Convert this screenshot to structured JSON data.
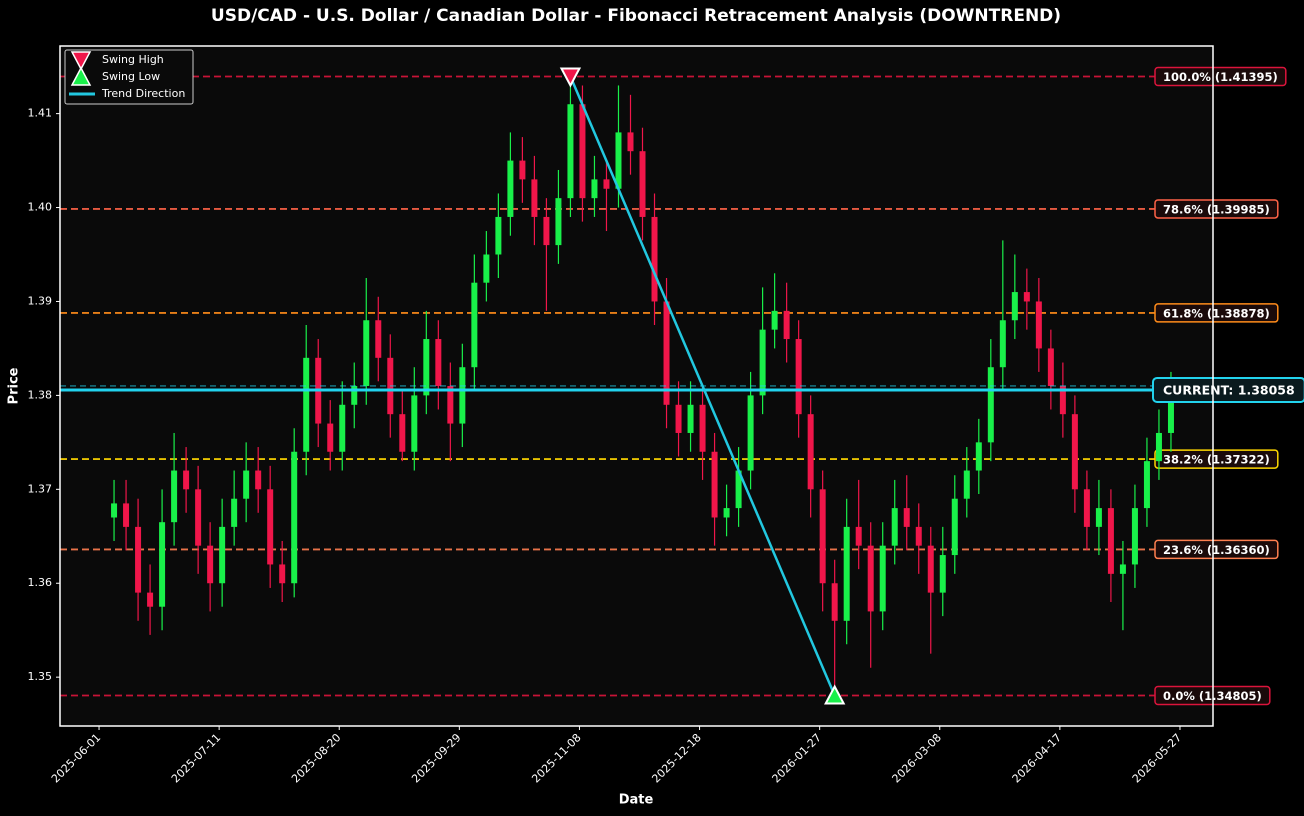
{
  "chart_data": {
    "type": "candlestick",
    "title": "USD/CAD - U.S. Dollar / Canadian Dollar - Fibonacci Retracement Analysis (DOWNTREND)",
    "xlabel": "Date",
    "ylabel": "Price",
    "xlim": [
      "2025-05-19",
      "2026-06-07"
    ],
    "xticks": [
      "2025-06-01",
      "2025-07-11",
      "2025-08-20",
      "2025-09-29",
      "2025-11-08",
      "2025-12-18",
      "2026-01-27",
      "2026-03-08",
      "2026-04-17",
      "2026-05-27"
    ],
    "ylim": [
      1.3448,
      1.4172
    ],
    "yticks": [
      1.35,
      1.36,
      1.37,
      1.38,
      1.39,
      {
        "value": 1.4,
        "label": "1.40"
      },
      1.41
    ],
    "up_color": "#19f04a",
    "down_color": "#f0164a",
    "x": [
      "2025-06-06",
      "2025-06-10",
      "2025-06-14",
      "2025-06-18",
      "2025-06-22",
      "2025-06-26",
      "2025-06-30",
      "2025-07-04",
      "2025-07-08",
      "2025-07-12",
      "2025-07-16",
      "2025-07-20",
      "2025-07-24",
      "2025-07-28",
      "2025-08-01",
      "2025-08-05",
      "2025-08-09",
      "2025-08-13",
      "2025-08-17",
      "2025-08-21",
      "2025-08-25",
      "2025-08-29",
      "2025-09-02",
      "2025-09-06",
      "2025-09-10",
      "2025-09-14",
      "2025-09-18",
      "2025-09-22",
      "2025-09-26",
      "2025-09-30",
      "2025-10-04",
      "2025-10-08",
      "2025-10-12",
      "2025-10-16",
      "2025-10-20",
      "2025-10-24",
      "2025-10-28",
      "2025-11-01",
      "2025-11-05",
      "2025-11-09",
      "2025-11-13",
      "2025-11-17",
      "2025-11-21",
      "2025-11-25",
      "2025-11-29",
      "2025-12-03",
      "2025-12-07",
      "2025-12-11",
      "2025-12-15",
      "2025-12-19",
      "2025-12-23",
      "2025-12-27",
      "2025-12-31",
      "2026-01-04",
      "2026-01-08",
      "2026-01-12",
      "2026-01-16",
      "2026-01-20",
      "2026-01-24",
      "2026-01-28",
      "2026-02-01",
      "2026-02-05",
      "2026-02-09",
      "2026-02-13",
      "2026-02-17",
      "2026-02-21",
      "2026-02-25",
      "2026-03-01",
      "2026-03-05",
      "2026-03-09",
      "2026-03-13",
      "2026-03-17",
      "2026-03-21",
      "2026-03-25",
      "2026-03-29",
      "2026-04-02",
      "2026-04-06",
      "2026-04-10",
      "2026-04-14",
      "2026-04-18",
      "2026-04-22",
      "2026-04-26",
      "2026-04-30",
      "2026-05-04",
      "2026-05-08",
      "2026-05-12",
      "2026-05-16",
      "2026-05-20",
      "2026-05-24"
    ],
    "open": [
      1.367,
      1.3685,
      1.366,
      1.359,
      1.3575,
      1.3665,
      1.372,
      1.37,
      1.364,
      1.36,
      1.366,
      1.369,
      1.372,
      1.37,
      1.362,
      1.36,
      1.374,
      1.384,
      1.377,
      1.374,
      1.379,
      1.381,
      1.388,
      1.384,
      1.378,
      1.374,
      1.38,
      1.386,
      1.381,
      1.377,
      1.383,
      1.392,
      1.395,
      1.399,
      1.405,
      1.403,
      1.399,
      1.396,
      1.401,
      1.411,
      1.401,
      1.403,
      1.402,
      1.408,
      1.406,
      1.399,
      1.39,
      1.379,
      1.376,
      1.379,
      1.374,
      1.367,
      1.368,
      1.372,
      1.38,
      1.387,
      1.389,
      1.386,
      1.378,
      1.37,
      1.36,
      1.356,
      1.366,
      1.364,
      1.357,
      1.364,
      1.368,
      1.366,
      1.364,
      1.359,
      1.363,
      1.369,
      1.372,
      1.375,
      1.383,
      1.388,
      1.391,
      1.39,
      1.385,
      1.381,
      1.378,
      1.37,
      1.366,
      1.368,
      1.361,
      1.362,
      1.368,
      1.373,
      1.376
    ],
    "high": [
      1.371,
      1.371,
      1.369,
      1.362,
      1.37,
      1.376,
      1.3745,
      1.3725,
      1.3665,
      1.369,
      1.372,
      1.375,
      1.3745,
      1.3725,
      1.3645,
      1.3765,
      1.3875,
      1.386,
      1.3795,
      1.3815,
      1.3835,
      1.3925,
      1.3905,
      1.3865,
      1.3805,
      1.383,
      1.389,
      1.388,
      1.3835,
      1.3855,
      1.395,
      1.3975,
      1.4015,
      1.408,
      1.4075,
      1.4055,
      1.401,
      1.404,
      1.41395,
      1.413,
      1.4055,
      1.405,
      1.413,
      1.412,
      1.4085,
      1.4015,
      1.3925,
      1.3815,
      1.3815,
      1.381,
      1.376,
      1.3705,
      1.3745,
      1.3825,
      1.3915,
      1.393,
      1.392,
      1.388,
      1.38,
      1.372,
      1.3625,
      1.369,
      1.371,
      1.3665,
      1.3665,
      1.371,
      1.3715,
      1.3685,
      1.366,
      1.366,
      1.3715,
      1.3745,
      1.3775,
      1.386,
      1.3965,
      1.395,
      1.3935,
      1.3925,
      1.387,
      1.3835,
      1.38,
      1.372,
      1.371,
      1.37,
      1.3645,
      1.3705,
      1.3755,
      1.3785,
      1.3825
    ],
    "low": [
      1.3645,
      1.3635,
      1.356,
      1.3545,
      1.355,
      1.364,
      1.3675,
      1.361,
      1.357,
      1.3575,
      1.364,
      1.3665,
      1.3675,
      1.3595,
      1.358,
      1.3585,
      1.3715,
      1.3745,
      1.372,
      1.372,
      1.3765,
      1.379,
      1.3815,
      1.3755,
      1.373,
      1.372,
      1.378,
      1.3785,
      1.373,
      1.3745,
      1.3805,
      1.39,
      1.3925,
      1.397,
      1.4005,
      1.396,
      1.389,
      1.394,
      1.399,
      1.3985,
      1.399,
      1.3975,
      1.4,
      1.4035,
      1.3965,
      1.3875,
      1.3765,
      1.3735,
      1.374,
      1.371,
      1.364,
      1.365,
      1.366,
      1.37,
      1.378,
      1.385,
      1.3835,
      1.3755,
      1.367,
      1.357,
      1.34805,
      1.3535,
      1.3615,
      1.351,
      1.355,
      1.362,
      1.3635,
      1.361,
      1.3525,
      1.3565,
      1.361,
      1.367,
      1.3695,
      1.373,
      1.3805,
      1.386,
      1.387,
      1.3825,
      1.3785,
      1.3755,
      1.3675,
      1.3635,
      1.363,
      1.358,
      1.355,
      1.3595,
      1.366,
      1.371,
      1.374
    ],
    "close": [
      1.3685,
      1.366,
      1.359,
      1.3575,
      1.3665,
      1.372,
      1.37,
      1.364,
      1.36,
      1.366,
      1.369,
      1.372,
      1.37,
      1.362,
      1.36,
      1.374,
      1.384,
      1.377,
      1.374,
      1.379,
      1.381,
      1.388,
      1.384,
      1.378,
      1.374,
      1.38,
      1.386,
      1.381,
      1.377,
      1.383,
      1.392,
      1.395,
      1.399,
      1.405,
      1.403,
      1.399,
      1.396,
      1.401,
      1.411,
      1.401,
      1.403,
      1.402,
      1.408,
      1.406,
      1.399,
      1.39,
      1.379,
      1.376,
      1.379,
      1.374,
      1.367,
      1.368,
      1.372,
      1.38,
      1.387,
      1.389,
      1.386,
      1.378,
      1.37,
      1.36,
      1.356,
      1.366,
      1.364,
      1.357,
      1.364,
      1.368,
      1.366,
      1.364,
      1.359,
      1.363,
      1.369,
      1.372,
      1.375,
      1.383,
      1.388,
      1.391,
      1.39,
      1.385,
      1.381,
      1.378,
      1.37,
      1.366,
      1.368,
      1.361,
      1.362,
      1.368,
      1.373,
      1.376,
      1.38058
    ],
    "fib_levels": [
      {
        "label": "100.0% (1.41395)",
        "value": 1.41395,
        "color": "#dc143c"
      },
      {
        "label": "78.6% (1.39985)",
        "value": 1.39985,
        "color": "#ff6347"
      },
      {
        "label": "61.8% (1.38878)",
        "value": 1.38878,
        "color": "#ff8c1a"
      },
      {
        "label": "38.2% (1.37322)",
        "value": 1.37322,
        "color": "#ffd700"
      },
      {
        "label": "23.6% (1.36360)",
        "value": 1.3636,
        "color": "#ff7f50"
      },
      {
        "label": "0.0% (1.34805)",
        "value": 1.34805,
        "color": "#dc143c"
      }
    ],
    "current": {
      "label": "CURRENT: 1.38058",
      "value": 1.38058,
      "color": "#22d3ee"
    },
    "swing_high": {
      "name": "Swing High",
      "x": "2025-11-05",
      "value": 1.41395,
      "color": "#f0164a"
    },
    "swing_low": {
      "name": "Swing Low",
      "x": "2026-02-01",
      "value": 1.34805,
      "color": "#19f04a"
    },
    "trend": {
      "name": "Trend Direction",
      "color": "#22c8e0"
    },
    "legend": "upper left"
  }
}
